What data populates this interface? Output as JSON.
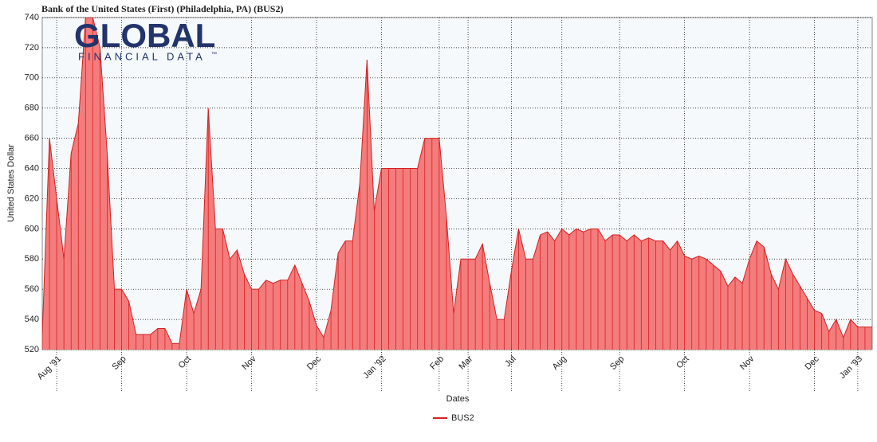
{
  "chart_data": {
    "type": "area",
    "title": "Bank of the United States (First) (Philadelphia, PA) (BUS2)",
    "logo": {
      "main": "GLOBAL",
      "sub": "FINANCIAL DATA",
      "mark": "™"
    },
    "x_label": "Dates",
    "y_label": "United States Dollar",
    "categories": [
      null,
      null,
      "Aug '91",
      null,
      null,
      null,
      null,
      null,
      null,
      null,
      null,
      "Sep",
      null,
      null,
      null,
      null,
      null,
      null,
      null,
      null,
      "Oct",
      null,
      null,
      null,
      null,
      null,
      null,
      null,
      null,
      "Nov",
      null,
      null,
      null,
      null,
      null,
      null,
      null,
      null,
      "Dec",
      null,
      null,
      null,
      null,
      null,
      null,
      null,
      null,
      "Jan '92",
      null,
      null,
      null,
      null,
      null,
      null,
      null,
      "Feb",
      null,
      null,
      null,
      "Mar",
      null,
      null,
      null,
      null,
      null,
      "Jul",
      null,
      null,
      null,
      null,
      null,
      null,
      "Aug",
      null,
      null,
      null,
      null,
      null,
      null,
      null,
      "Sep",
      null,
      null,
      null,
      null,
      null,
      null,
      null,
      null,
      "Oct",
      null,
      null,
      null,
      null,
      null,
      null,
      null,
      null,
      "Nov",
      null,
      null,
      null,
      null,
      null,
      null,
      null,
      null,
      "Dec",
      null,
      null,
      null,
      null,
      null,
      "Jan '93",
      null,
      null
    ],
    "series": [
      {
        "name": "BUS2",
        "color": "#d42020",
        "fill": "#f47c7c",
        "values": [
          530,
          660,
          620,
          580,
          650,
          670,
          740,
          740,
          720,
          650,
          560,
          560,
          552,
          530,
          530,
          530,
          534,
          534,
          524,
          524,
          560,
          544,
          560,
          680,
          600,
          600,
          580,
          586,
          570,
          560,
          560,
          566,
          564,
          566,
          566,
          576,
          564,
          552,
          536,
          528,
          546,
          584,
          592,
          592,
          630,
          712,
          612,
          640,
          640,
          640,
          640,
          640,
          640,
          660,
          660,
          660,
          608,
          544,
          580,
          580,
          580,
          590,
          564,
          540,
          540,
          572,
          600,
          580,
          580,
          596,
          598,
          592,
          600,
          596,
          600,
          598,
          600,
          600,
          592,
          596,
          596,
          592,
          596,
          592,
          594,
          592,
          592,
          586,
          592,
          582,
          580,
          582,
          580,
          576,
          572,
          562,
          568,
          564,
          580,
          592,
          588,
          570,
          560,
          580,
          570,
          562,
          554,
          546,
          544,
          532,
          540,
          528,
          540,
          535,
          535,
          535
        ]
      }
    ],
    "ylim": [
      520,
      740
    ],
    "yticks": [
      520,
      540,
      560,
      580,
      600,
      620,
      640,
      660,
      680,
      700,
      720,
      740
    ],
    "grid": true,
    "legend": "bottom"
  }
}
